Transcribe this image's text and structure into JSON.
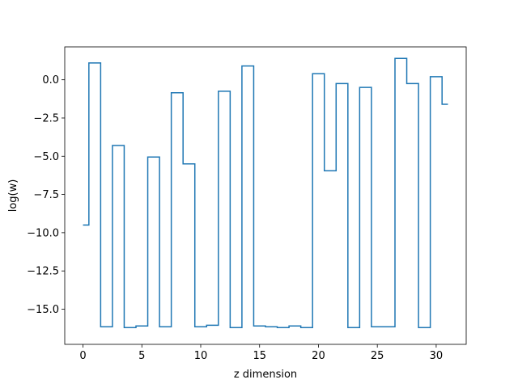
{
  "chart_data": {
    "type": "line",
    "drawstyle": "steps-mid",
    "title": "",
    "xlabel": "z dimension",
    "ylabel": "log(w)",
    "xlim": [
      -1.55,
      32.55
    ],
    "ylim": [
      -17.3,
      2.15
    ],
    "xticks": [
      0,
      5,
      10,
      15,
      20,
      25,
      30
    ],
    "xtick_labels": [
      "0",
      "5",
      "10",
      "15",
      "20",
      "25",
      "30"
    ],
    "yticks": [
      0.0,
      -2.5,
      -5.0,
      -7.5,
      -10.0,
      -12.5,
      -15.0
    ],
    "ytick_labels": [
      "0.0",
      "−2.5",
      "−5.0",
      "−7.5",
      "−10.0",
      "−12.5",
      "−15.0"
    ],
    "grid": false,
    "series": [
      {
        "color": "#1f77b4",
        "x": [
          0,
          1,
          2,
          3,
          4,
          5,
          6,
          7,
          8,
          9,
          10,
          11,
          12,
          13,
          14,
          15,
          16,
          17,
          18,
          19,
          20,
          21,
          22,
          23,
          24,
          25,
          26,
          27,
          28,
          29,
          30,
          31
        ],
        "y": [
          -9.5,
          1.1,
          -16.15,
          -4.3,
          -16.2,
          -16.1,
          -5.05,
          -16.15,
          -0.85,
          -5.5,
          -16.15,
          -16.05,
          -0.75,
          -16.2,
          0.9,
          -16.1,
          -16.15,
          -16.2,
          -16.1,
          -16.2,
          0.4,
          -5.95,
          -0.25,
          -16.2,
          -0.5,
          -16.15,
          -16.15,
          1.4,
          -0.25,
          -16.2,
          0.2,
          -1.6
        ]
      }
    ]
  }
}
